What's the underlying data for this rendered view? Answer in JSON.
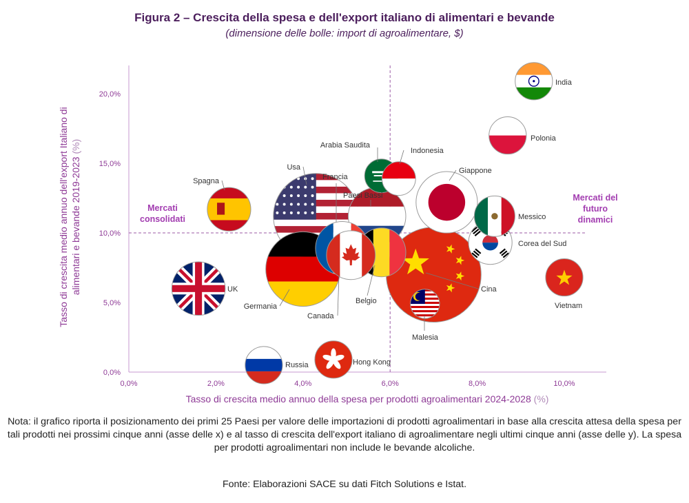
{
  "title": "Figura 2 – Crescita della spesa e dell'export italiano di alimentari e bevande",
  "subtitle": "(dimensione delle bolle: import di agroalimentare, $)",
  "note": "Nota: il grafico riporta il posizionamento dei primi 25 Paesi per valore delle importazioni di prodotti agroalimentari in base alla crescita attesa della spesa per tali prodotti nei prossimi cinque anni (asse delle x) e al tasso di crescita dell'export italiano di agroalimentare negli ultimi cinque anni (asse delle y). La spesa per prodotti agroalimentari non include le bevande alcoliche.",
  "source": "Fonte: Elaborazioni SACE su dati Fitch Solutions e Istat.",
  "chart_data": {
    "type": "scatter",
    "xlabel": "Tasso di crescita medio annuo della spesa per prodotti agroalimentari 2024-2028",
    "xlabel_unit": "(%)",
    "ylabel_line1": "Tasso di crescita medio annuo dell'export Italiano di",
    "ylabel_line2": "alimentari e bevande 2019-2023",
    "ylabel_unit": "(%)",
    "xlim": [
      0,
      11
    ],
    "ylim": [
      0,
      22
    ],
    "x_ticks": [
      0,
      2,
      4,
      6,
      8,
      10
    ],
    "x_tick_labels": [
      "0,0%",
      "2,0%",
      "4,0%",
      "6,0%",
      "8,0%",
      "10,0%"
    ],
    "y_ticks": [
      0,
      5,
      10,
      15,
      20
    ],
    "y_tick_labels": [
      "0,0%",
      "5,0%",
      "10,0%",
      "15,0%",
      "20,0%"
    ],
    "reference_lines": {
      "x": 6.0,
      "y": 10.0
    },
    "region_labels": [
      {
        "text": "Mercati\nconsolidati",
        "quadrant": "left"
      },
      {
        "text": "Mercati del\nfuturo\ndinamici",
        "quadrant": "right"
      }
    ],
    "points": [
      {
        "name": "India",
        "x": 9.3,
        "y": 20.9,
        "size": 2,
        "flag": "india"
      },
      {
        "name": "Polonia",
        "x": 8.7,
        "y": 17.0,
        "size": 2,
        "flag": "poland"
      },
      {
        "name": "Arabia Saudita",
        "x": 5.8,
        "y": 14.1,
        "size": 1.5,
        "flag": "saudi"
      },
      {
        "name": "Indonesia",
        "x": 6.2,
        "y": 13.9,
        "size": 1.5,
        "flag": "indonesia"
      },
      {
        "name": "Giappone",
        "x": 7.3,
        "y": 12.2,
        "size": 7,
        "flag": "japan"
      },
      {
        "name": "Spagna",
        "x": 2.3,
        "y": 11.7,
        "size": 3,
        "flag": "spain"
      },
      {
        "name": "Usa",
        "x": 4.3,
        "y": 11.2,
        "size": 15,
        "flag": "usa"
      },
      {
        "name": "Paesi Bassi",
        "x": 5.7,
        "y": 11.2,
        "size": 6,
        "flag": "netherlands"
      },
      {
        "name": "Messico",
        "x": 8.4,
        "y": 11.2,
        "size": 2.5,
        "flag": "mexico"
      },
      {
        "name": "Corea del Sud",
        "x": 8.3,
        "y": 9.3,
        "size": 3,
        "flag": "korea"
      },
      {
        "name": "Francia",
        "x": 4.9,
        "y": 8.9,
        "size": 5,
        "flag": "france"
      },
      {
        "name": "Belgio",
        "x": 5.8,
        "y": 8.6,
        "size": 4,
        "flag": "belgium"
      },
      {
        "name": "Canada",
        "x": 5.1,
        "y": 8.4,
        "size": 4,
        "flag": "canada"
      },
      {
        "name": "Germania",
        "x": 4.0,
        "y": 7.4,
        "size": 11,
        "flag": "germany"
      },
      {
        "name": "Cina",
        "x": 7.0,
        "y": 7.0,
        "size": 19,
        "flag": "china"
      },
      {
        "name": "Vietnam",
        "x": 10.0,
        "y": 6.8,
        "size": 2,
        "flag": "vietnam"
      },
      {
        "name": "UK",
        "x": 1.6,
        "y": 6.0,
        "size": 5,
        "flag": "uk"
      },
      {
        "name": "Malesia",
        "x": 6.8,
        "y": 4.9,
        "size": 1,
        "flag": "malaysia"
      },
      {
        "name": "Russia",
        "x": 3.1,
        "y": 0.5,
        "size": 2,
        "flag": "russia"
      },
      {
        "name": "Hong Kong",
        "x": 4.7,
        "y": 0.9,
        "size": 2,
        "flag": "hongkong"
      }
    ]
  }
}
